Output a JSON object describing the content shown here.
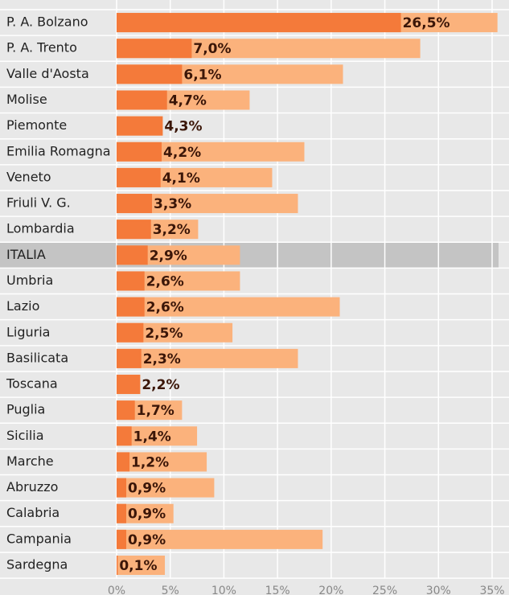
{
  "chart_data": {
    "type": "bar",
    "orientation": "horizontal",
    "categories": [
      "P. A. Bolzano",
      "P. A. Trento",
      "Valle d'Aosta",
      "Molise",
      "Piemonte",
      "Emilia Romagna",
      "Veneto",
      "Friuli V. G.",
      "Lombardia",
      "ITALIA",
      "Umbria",
      "Lazio",
      "Liguria",
      "Basilicata",
      "Toscana",
      "Puglia",
      "Sicilia",
      "Marche",
      "Abruzzo",
      "Calabria",
      "Campania",
      "Sardegna"
    ],
    "series": [
      {
        "color": "#fbb27c",
        "values": [
          35.5,
          28.3,
          21.1,
          12.4,
          4.3,
          17.5,
          14.5,
          16.9,
          7.6,
          11.5,
          11.5,
          20.8,
          10.8,
          16.9,
          2.2,
          6.1,
          7.5,
          8.4,
          9.1,
          5.3,
          19.2,
          4.5
        ]
      },
      {
        "color": "#f47a3a",
        "values": [
          26.5,
          7.0,
          6.1,
          4.7,
          4.3,
          4.2,
          4.1,
          3.3,
          3.2,
          2.9,
          2.6,
          2.6,
          2.5,
          2.3,
          2.2,
          1.7,
          1.4,
          1.2,
          0.9,
          0.9,
          0.9,
          0.1
        ],
        "value_labels": [
          "26,5%",
          "7,0%",
          "6,1%",
          "4,7%",
          "4,3%",
          "4,2%",
          "4,1%",
          "3,3%",
          "3,2%",
          "2,9%",
          "2,6%",
          "2,6%",
          "2,5%",
          "2,3%",
          "2,2%",
          "1,7%",
          "1,4%",
          "1,2%",
          "0,9%",
          "0,9%",
          "0,9%",
          "0,1%"
        ]
      }
    ],
    "highlight": 9,
    "xlim": [
      0,
      35
    ],
    "xticks": [
      {
        "value": 0,
        "label": "0%"
      },
      {
        "value": 5,
        "label": "5%"
      },
      {
        "value": 10,
        "label": "10%"
      },
      {
        "value": 15,
        "label": "15%"
      },
      {
        "value": 20,
        "label": "20%"
      },
      {
        "value": 25,
        "label": "25%"
      },
      {
        "value": 30,
        "label": "30%"
      },
      {
        "value": 35,
        "label": "35%"
      }
    ],
    "grid": true
  }
}
